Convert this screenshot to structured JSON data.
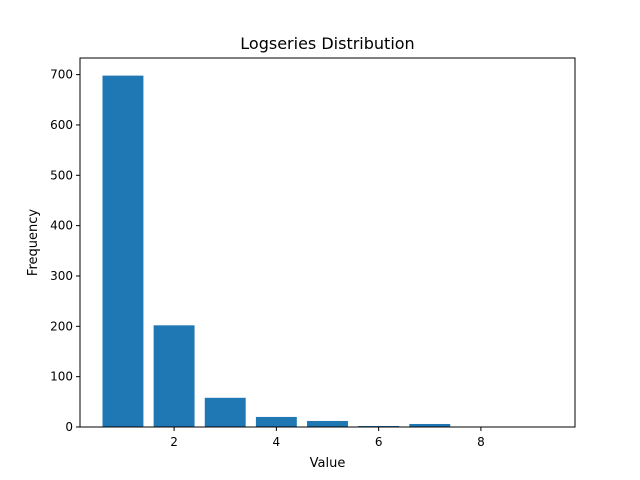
{
  "chart_data": {
    "type": "bar",
    "title": "Logseries Distribution",
    "x_label": "Value",
    "y_label": "Frequency",
    "x": [
      1,
      2,
      3,
      4,
      5,
      6,
      7,
      8,
      9
    ],
    "values": [
      698,
      202,
      58,
      20,
      12,
      2,
      6,
      1,
      1
    ],
    "color": "#1f77b4",
    "xlim": [
      0.16,
      9.84
    ],
    "xticks": [
      2,
      4,
      6,
      8
    ],
    "ylim": [
      0,
      733
    ],
    "yticks": [
      0,
      100,
      200,
      300,
      400,
      500,
      600,
      700
    ],
    "grid": false
  }
}
